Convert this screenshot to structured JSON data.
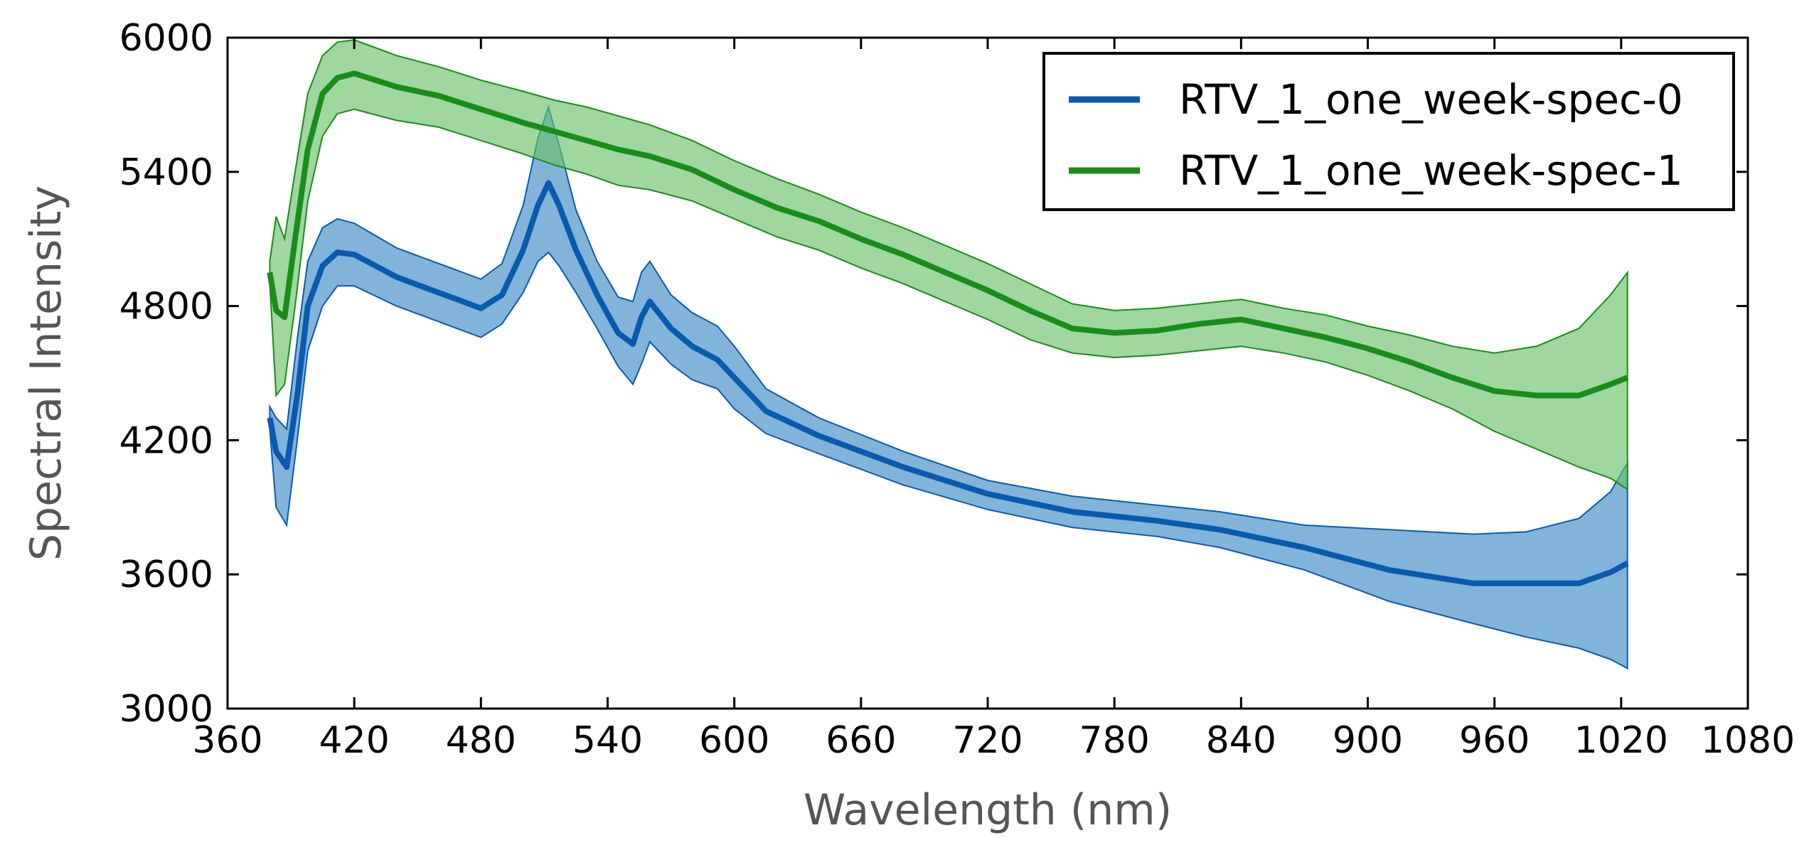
{
  "chart_data": {
    "type": "line",
    "title": "",
    "xlabel": "Wavelength (nm)",
    "ylabel": "Spectral Intensity",
    "xlim": [
      360,
      1080
    ],
    "ylim": [
      3000,
      6000
    ],
    "xticks": [
      360,
      420,
      480,
      540,
      600,
      660,
      720,
      780,
      840,
      900,
      960,
      1020,
      1080
    ],
    "yticks": [
      3000,
      3600,
      4200,
      4800,
      5400,
      6000
    ],
    "legend_position": "top-right",
    "grid": false,
    "series": [
      {
        "name": "RTV_1_one_week-spec-0",
        "color": "#0a5aad",
        "band_color": "#3f8ac4",
        "x": [
          380,
          383,
          388,
          393,
          398,
          405,
          412,
          420,
          440,
          460,
          480,
          490,
          500,
          507,
          512,
          517,
          525,
          535,
          545,
          552,
          556,
          560,
          570,
          580,
          592,
          600,
          615,
          640,
          680,
          720,
          760,
          800,
          830,
          870,
          910,
          950,
          975,
          1000,
          1015,
          1023
        ],
        "mean": [
          4300,
          4150,
          4080,
          4400,
          4800,
          4980,
          5040,
          5030,
          4930,
          4860,
          4790,
          4850,
          5050,
          5250,
          5350,
          5250,
          5050,
          4850,
          4680,
          4630,
          4750,
          4820,
          4700,
          4620,
          4560,
          4480,
          4330,
          4220,
          4080,
          3960,
          3880,
          3840,
          3800,
          3720,
          3620,
          3560,
          3560,
          3560,
          3610,
          3650
        ],
        "upper": [
          4350,
          4300,
          4250,
          4650,
          5000,
          5150,
          5190,
          5170,
          5060,
          4990,
          4920,
          4990,
          5250,
          5550,
          5690,
          5520,
          5230,
          5000,
          4840,
          4820,
          4950,
          5000,
          4850,
          4770,
          4710,
          4620,
          4430,
          4300,
          4150,
          4020,
          3950,
          3910,
          3880,
          3820,
          3800,
          3780,
          3790,
          3850,
          3970,
          4100
        ],
        "lower": [
          4250,
          3900,
          3820,
          4200,
          4600,
          4800,
          4890,
          4890,
          4800,
          4730,
          4660,
          4720,
          4860,
          5000,
          5040,
          4980,
          4860,
          4700,
          4530,
          4450,
          4540,
          4640,
          4540,
          4470,
          4430,
          4340,
          4230,
          4140,
          4000,
          3890,
          3810,
          3770,
          3720,
          3620,
          3480,
          3380,
          3320,
          3270,
          3220,
          3180
        ]
      },
      {
        "name": "RTV_1_one_week-spec-1",
        "color": "#1a8c1a",
        "band_color": "#6cc16c",
        "x": [
          380,
          383,
          387,
          392,
          398,
          405,
          412,
          420,
          440,
          460,
          480,
          500,
          515,
          530,
          545,
          560,
          580,
          600,
          620,
          640,
          660,
          680,
          700,
          720,
          740,
          760,
          780,
          800,
          820,
          840,
          860,
          880,
          900,
          920,
          940,
          960,
          980,
          1000,
          1015,
          1023
        ],
        "mean": [
          4950,
          4780,
          4750,
          5100,
          5500,
          5750,
          5820,
          5840,
          5780,
          5740,
          5680,
          5620,
          5580,
          5540,
          5500,
          5470,
          5410,
          5320,
          5240,
          5180,
          5100,
          5030,
          4950,
          4870,
          4780,
          4700,
          4680,
          4690,
          4720,
          4740,
          4700,
          4660,
          4610,
          4550,
          4480,
          4420,
          4400,
          4400,
          4450,
          4480
        ],
        "upper": [
          5000,
          5200,
          5100,
          5400,
          5750,
          5920,
          5980,
          5990,
          5920,
          5870,
          5810,
          5760,
          5720,
          5690,
          5650,
          5610,
          5540,
          5450,
          5370,
          5300,
          5220,
          5150,
          5070,
          4990,
          4900,
          4810,
          4780,
          4790,
          4810,
          4830,
          4790,
          4760,
          4710,
          4670,
          4620,
          4590,
          4620,
          4700,
          4850,
          4950
        ],
        "lower": [
          4900,
          4400,
          4450,
          4800,
          5270,
          5560,
          5660,
          5680,
          5630,
          5600,
          5540,
          5480,
          5430,
          5390,
          5340,
          5320,
          5270,
          5190,
          5110,
          5050,
          4970,
          4900,
          4820,
          4740,
          4650,
          4590,
          4570,
          4580,
          4600,
          4620,
          4590,
          4550,
          4490,
          4420,
          4340,
          4240,
          4160,
          4080,
          4030,
          3980
        ]
      }
    ]
  }
}
